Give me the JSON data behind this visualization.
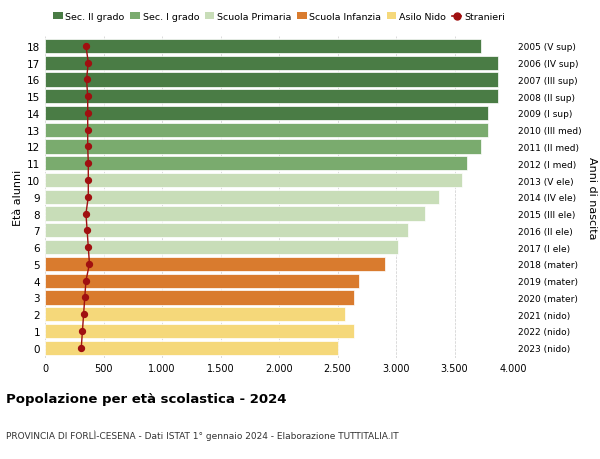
{
  "ages": [
    18,
    17,
    16,
    15,
    14,
    13,
    12,
    11,
    10,
    9,
    8,
    7,
    6,
    5,
    4,
    3,
    2,
    1,
    0
  ],
  "years": [
    "2005 (V sup)",
    "2006 (IV sup)",
    "2007 (III sup)",
    "2008 (II sup)",
    "2009 (I sup)",
    "2010 (III med)",
    "2011 (II med)",
    "2012 (I med)",
    "2013 (V ele)",
    "2014 (IV ele)",
    "2015 (III ele)",
    "2016 (II ele)",
    "2017 (I ele)",
    "2018 (mater)",
    "2019 (mater)",
    "2020 (mater)",
    "2021 (nido)",
    "2022 (nido)",
    "2023 (nido)"
  ],
  "bar_values": [
    3730,
    3870,
    3870,
    3870,
    3790,
    3790,
    3730,
    3610,
    3560,
    3370,
    3250,
    3100,
    3020,
    2910,
    2680,
    2640,
    2560,
    2640,
    2500
  ],
  "stranieri_values": [
    350,
    370,
    355,
    365,
    365,
    365,
    365,
    370,
    370,
    370,
    350,
    360,
    370,
    380,
    350,
    340,
    330,
    320,
    310
  ],
  "bar_colors": [
    "#4a7c45",
    "#4a7c45",
    "#4a7c45",
    "#4a7c45",
    "#4a7c45",
    "#7aab6e",
    "#7aab6e",
    "#7aab6e",
    "#c8ddb8",
    "#c8ddb8",
    "#c8ddb8",
    "#c8ddb8",
    "#c8ddb8",
    "#d97b2e",
    "#d97b2e",
    "#d97b2e",
    "#f5d87a",
    "#f5d87a",
    "#f5d87a"
  ],
  "legend_labels": [
    "Sec. II grado",
    "Sec. I grado",
    "Scuola Primaria",
    "Scuola Infanzia",
    "Asilo Nido",
    "Stranieri"
  ],
  "legend_colors": [
    "#4a7c45",
    "#7aab6e",
    "#c8ddb8",
    "#d97b2e",
    "#f5d87a",
    "#a01010"
  ],
  "ylabel_left": "Età alunni",
  "ylabel_right": "Anni di nascita",
  "title": "Popolazione per età scolastica - 2024",
  "subtitle": "PROVINCIA DI FORLÌ-CESENA - Dati ISTAT 1° gennaio 2024 - Elaborazione TUTTITALIA.IT",
  "xlim": [
    0,
    4000
  ],
  "ylim": [
    -0.6,
    18.6
  ],
  "bar_height": 0.85,
  "xticks": [
    0,
    500,
    1000,
    1500,
    2000,
    2500,
    3000,
    3500,
    4000
  ]
}
